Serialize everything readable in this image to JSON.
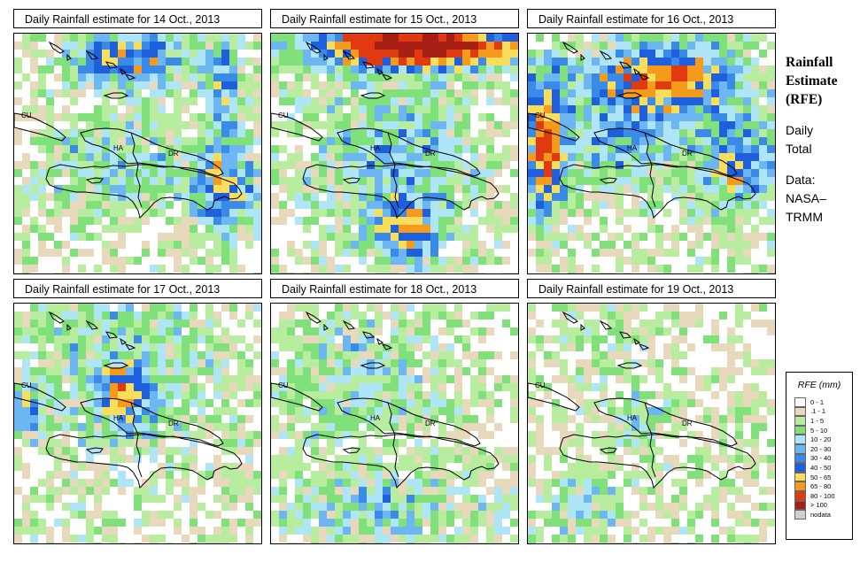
{
  "panels": [
    {
      "title": "Daily Rainfall estimate for  14 Oct., 2013"
    },
    {
      "title": "Daily Rainfall estimate for  15 Oct., 2013"
    },
    {
      "title": "Daily Rainfall estimate for  16 Oct., 2013"
    },
    {
      "title": "Daily Rainfall estimate for  17 Oct., 2013"
    },
    {
      "title": "Daily Rainfall estimate for  18 Oct., 2013"
    },
    {
      "title": "Daily Rainfall estimate for  19 Oct., 2013"
    }
  ],
  "map_labels": {
    "cuba": "CU",
    "haiti": "HA",
    "dr": "DR"
  },
  "side": {
    "title_line1": "Rainfall",
    "title_line2": "Estimate",
    "title_line3": "(RFE)",
    "desc_line1": "Daily",
    "desc_line2": "Total",
    "data_line1": "Data:",
    "data_line2": "NASA–",
    "data_line3": "TRMM"
  },
  "legend": {
    "title": "RFE (mm)",
    "items": [
      {
        "label": "0 - 1",
        "color": "#ffffff"
      },
      {
        "label": ".1 - 1",
        "color": "#e8d9bd"
      },
      {
        "label": "1 - 5",
        "color": "#b8eda0"
      },
      {
        "label": "5 - 10",
        "color": "#80e07a"
      },
      {
        "label": "10 - 20",
        "color": "#aee6f8"
      },
      {
        "label": "20 - 30",
        "color": "#6cb6f2"
      },
      {
        "label": "30 - 40",
        "color": "#3a8ae8"
      },
      {
        "label": "40 - 50",
        "color": "#1d5fdc"
      },
      {
        "label": "50 - 65",
        "color": "#f8de5a"
      },
      {
        "label": "65 - 80",
        "color": "#f59a1a"
      },
      {
        "label": "80 - 100",
        "color": "#e23a10"
      },
      {
        "label": "> 100",
        "color": "#a51f15"
      },
      {
        "label": "nodata",
        "color": "#cfcfcf"
      }
    ]
  }
}
